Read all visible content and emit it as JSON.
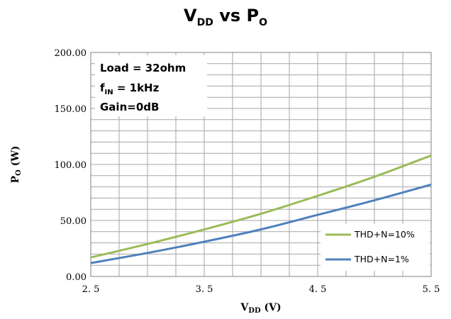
{
  "chart_data": {
    "type": "line",
    "title": {
      "main": "V",
      "main_sub": "DD",
      "mid": " vs P",
      "mid_sub": "O"
    },
    "xlabel": {
      "main": "V",
      "sub": "DD",
      "rest": " (V)"
    },
    "ylabel": {
      "main": "P",
      "sub": "O",
      "rest": " (W)"
    },
    "xlim": [
      2.5,
      5.5
    ],
    "ylim": [
      0,
      200
    ],
    "x_tick_values": [
      2.5,
      3.5,
      4.5,
      5.5
    ],
    "x_tick_labels": [
      "2. 5",
      "3. 5",
      "4. 5",
      "5. 5"
    ],
    "y_tick_values": [
      0,
      50,
      100,
      150,
      200
    ],
    "y_tick_labels": [
      "0.00",
      "50.00",
      "100.00",
      "150.00",
      "200.00"
    ],
    "grid": true,
    "annotations": {
      "load": "Load = 32ohm",
      "fin_main": "f",
      "fin_sub": "IN",
      "fin_rest": " = 1kHz",
      "gain": "Gain=0dB"
    },
    "legend_position": "bottom-right",
    "series": [
      {
        "name": "THD+N=10%",
        "color": "#9BBB59",
        "x": [
          2.5,
          3.0,
          3.5,
          4.0,
          4.5,
          5.0,
          5.5
        ],
        "y": [
          17,
          29,
          42,
          56,
          72,
          89,
          108
        ]
      },
      {
        "name": "THD+N=1%",
        "color": "#4F81BD",
        "x": [
          2.5,
          3.0,
          3.5,
          4.0,
          4.5,
          5.0,
          5.5
        ],
        "y": [
          12,
          21,
          31,
          42,
          55,
          68,
          82
        ]
      }
    ]
  }
}
